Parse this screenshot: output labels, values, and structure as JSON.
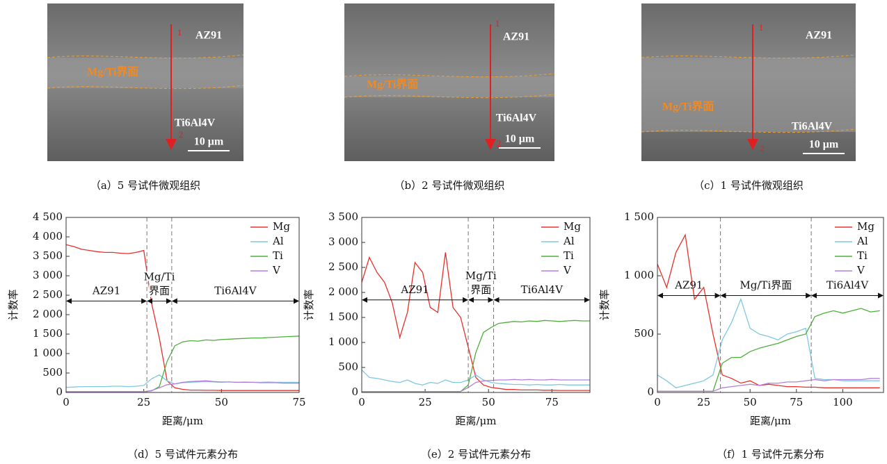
{
  "images": [
    {
      "labels": [
        "AZ91",
        "Mg/Ti界面",
        "Ti6Al4V",
        "10 μm",
        "1",
        "2"
      ],
      "caption": "（a）5 号试件微观组织"
    },
    {
      "labels": [
        "AZ91",
        "Mg/Ti界面",
        "Ti6Al4V",
        "10 μm",
        "1",
        "2"
      ],
      "caption": "（b）2 号试件微观组织"
    },
    {
      "labels": [
        "AZ91",
        "Mg/Ti界面",
        "Ti6Al4V",
        "10 μm",
        "1",
        "2"
      ],
      "caption": "（c）1 号试件微观组织"
    }
  ],
  "chart_data": [
    {
      "type": "line",
      "caption": "（d）5 号试件元素分布",
      "xlabel": "距离/μm",
      "ylabel": "计数率",
      "xlim": [
        0,
        75
      ],
      "xticks": [
        0,
        25,
        50,
        75
      ],
      "ylim": [
        0,
        4500
      ],
      "yticks": [
        0,
        500,
        {
          "value": 1000,
          "label": "1 000"
        },
        {
          "value": 1500,
          "label": "1 500"
        },
        {
          "value": 2000,
          "label": "2 000"
        },
        {
          "value": 2500,
          "label": "2 500"
        },
        {
          "value": 3000,
          "label": "3 000"
        },
        {
          "value": 3500,
          "label": "3 500"
        },
        {
          "value": 4000,
          "label": "4 000"
        },
        {
          "value": 4500,
          "label": "4 500"
        }
      ],
      "boundaries": [
        26,
        34
      ],
      "arrow_y": 2350,
      "regions": [
        {
          "label": [
            "AZ91"
          ],
          "from": 0,
          "to": 26
        },
        {
          "label": [
            "Mg/Ti",
            "界面"
          ],
          "from": 26,
          "to": 34
        },
        {
          "label": [
            "Ti6Al4V"
          ],
          "from": 34,
          "to": 75
        }
      ],
      "x": [
        0,
        2.5,
        5,
        7.5,
        10,
        12.5,
        15,
        17.5,
        20,
        22.5,
        25,
        27.5,
        30,
        32.5,
        35,
        37.5,
        40,
        42.5,
        45,
        47.5,
        50,
        52.5,
        55,
        57.5,
        60,
        62.5,
        65,
        67.5,
        70,
        72.5,
        75
      ],
      "series": [
        {
          "name": "Mg",
          "color": "#e8302a",
          "values": [
            3800,
            3750,
            3680,
            3650,
            3620,
            3600,
            3600,
            3580,
            3570,
            3600,
            3650,
            2300,
            1400,
            300,
            120,
            80,
            60,
            60,
            55,
            55,
            50,
            50,
            50,
            50,
            50,
            50,
            50,
            50,
            50,
            50,
            50
          ]
        },
        {
          "name": "Al",
          "color": "#7ec8e3",
          "values": [
            130,
            140,
            150,
            150,
            150,
            150,
            160,
            160,
            150,
            160,
            180,
            350,
            450,
            300,
            220,
            250,
            260,
            270,
            280,
            270,
            260,
            270,
            260,
            270,
            260,
            260,
            270,
            260,
            260,
            260,
            260
          ]
        },
        {
          "name": "Ti",
          "color": "#4caf3a",
          "values": [
            20,
            20,
            20,
            20,
            20,
            20,
            20,
            20,
            20,
            20,
            20,
            40,
            150,
            800,
            1200,
            1300,
            1330,
            1320,
            1350,
            1340,
            1360,
            1370,
            1380,
            1390,
            1400,
            1400,
            1410,
            1420,
            1430,
            1440,
            1450
          ]
        },
        {
          "name": "V",
          "color": "#b57edc",
          "values": [
            20,
            20,
            20,
            20,
            20,
            20,
            20,
            20,
            20,
            20,
            20,
            50,
            120,
            200,
            220,
            260,
            280,
            290,
            300,
            280,
            270,
            270,
            260,
            260,
            260,
            250,
            250,
            250,
            240,
            240,
            240
          ]
        }
      ]
    },
    {
      "type": "line",
      "caption": "（e）2 号试件元素分布",
      "xlabel": "距离/μm",
      "ylabel": "计数率",
      "xlim": [
        0,
        90
      ],
      "xticks": [
        0,
        25,
        50,
        75
      ],
      "ylim": [
        0,
        3500
      ],
      "yticks": [
        0,
        500,
        {
          "value": 1000,
          "label": "1 000"
        },
        {
          "value": 1500,
          "label": "1 500"
        },
        {
          "value": 2000,
          "label": "2 000"
        },
        {
          "value": 2500,
          "label": "2 500"
        },
        {
          "value": 3000,
          "label": "3 000"
        },
        {
          "value": 3500,
          "label": "3 500"
        }
      ],
      "boundaries": [
        42,
        52
      ],
      "arrow_y": 1850,
      "regions": [
        {
          "label": [
            "AZ91"
          ],
          "from": 0,
          "to": 42
        },
        {
          "label": [
            "Mg/Ti",
            "界面"
          ],
          "from": 42,
          "to": 52
        },
        {
          "label": [
            "Ti6Al4V"
          ],
          "from": 52,
          "to": 90
        }
      ],
      "x": [
        0,
        3,
        6,
        9,
        12,
        15,
        18,
        21,
        24,
        27,
        30,
        33,
        36,
        39,
        42,
        45,
        48,
        51,
        54,
        57,
        60,
        63,
        66,
        69,
        72,
        75,
        78,
        81,
        84,
        87,
        90
      ],
      "series": [
        {
          "name": "Mg",
          "color": "#e8302a",
          "values": [
            2200,
            2700,
            2400,
            2200,
            1800,
            1100,
            1600,
            2600,
            2400,
            1700,
            1600,
            2800,
            1700,
            1500,
            900,
            300,
            150,
            100,
            80,
            60,
            60,
            50,
            50,
            50,
            45,
            45,
            40,
            40,
            40,
            40,
            40
          ]
        },
        {
          "name": "Al",
          "color": "#7ec8e3",
          "values": [
            450,
            300,
            280,
            250,
            220,
            200,
            250,
            180,
            150,
            200,
            180,
            250,
            200,
            200,
            250,
            350,
            250,
            200,
            180,
            170,
            160,
            160,
            150,
            160,
            150,
            150,
            160,
            150,
            150,
            150,
            150
          ]
        },
        {
          "name": "Ti",
          "color": "#4caf3a",
          "values": [
            20,
            20,
            20,
            20,
            20,
            20,
            20,
            20,
            20,
            20,
            20,
            20,
            20,
            20,
            150,
            800,
            1200,
            1300,
            1380,
            1400,
            1420,
            1410,
            1430,
            1420,
            1440,
            1430,
            1420,
            1430,
            1440,
            1430,
            1430
          ]
        },
        {
          "name": "V",
          "color": "#b57edc",
          "values": [
            20,
            20,
            20,
            20,
            20,
            20,
            20,
            20,
            20,
            20,
            20,
            20,
            20,
            20,
            100,
            200,
            230,
            240,
            250,
            250,
            260,
            250,
            260,
            250,
            250,
            260,
            250,
            250,
            250,
            250,
            250
          ]
        }
      ]
    },
    {
      "type": "line",
      "caption": "（f）1 号试件元素分布",
      "xlabel": "距离/μm",
      "ylabel": "计数率",
      "xlim": [
        0,
        122
      ],
      "xticks": [
        0,
        25,
        50,
        75,
        100
      ],
      "ylim": [
        0,
        1500
      ],
      "yticks": [
        0,
        500,
        {
          "value": 1000,
          "label": "1 000"
        },
        {
          "value": 1500,
          "label": "1 500"
        }
      ],
      "boundaries": [
        34,
        83
      ],
      "arrow_y": 830,
      "regions": [
        {
          "label": [
            "AZ91"
          ],
          "from": 0,
          "to": 34
        },
        {
          "label": [
            "Mg/Ti界面"
          ],
          "from": 34,
          "to": 83
        },
        {
          "label": [
            "Ti6Al4V"
          ],
          "from": 83,
          "to": 122
        }
      ],
      "x": [
        0,
        5,
        10,
        15,
        20,
        25,
        30,
        35,
        40,
        45,
        50,
        55,
        60,
        65,
        70,
        75,
        80,
        85,
        90,
        95,
        100,
        105,
        110,
        115,
        120
      ],
      "series": [
        {
          "name": "Mg",
          "color": "#e8302a",
          "values": [
            1100,
            900,
            1200,
            1350,
            800,
            900,
            500,
            150,
            120,
            80,
            100,
            60,
            70,
            60,
            50,
            50,
            45,
            45,
            40,
            40,
            40,
            40,
            40,
            40,
            40
          ]
        },
        {
          "name": "Al",
          "color": "#7ec8e3",
          "values": [
            150,
            100,
            40,
            60,
            80,
            100,
            150,
            450,
            600,
            800,
            550,
            500,
            480,
            450,
            500,
            520,
            550,
            120,
            110,
            110,
            100,
            100,
            100,
            100,
            100
          ]
        },
        {
          "name": "Ti",
          "color": "#4caf3a",
          "values": [
            10,
            10,
            10,
            10,
            10,
            10,
            10,
            250,
            300,
            300,
            350,
            380,
            400,
            420,
            450,
            480,
            500,
            650,
            680,
            700,
            680,
            700,
            720,
            690,
            700
          ]
        },
        {
          "name": "V",
          "color": "#b57edc",
          "values": [
            10,
            10,
            10,
            10,
            10,
            10,
            10,
            40,
            50,
            60,
            70,
            60,
            80,
            80,
            90,
            90,
            100,
            110,
            100,
            110,
            110,
            110,
            110,
            120,
            120
          ]
        }
      ]
    }
  ]
}
